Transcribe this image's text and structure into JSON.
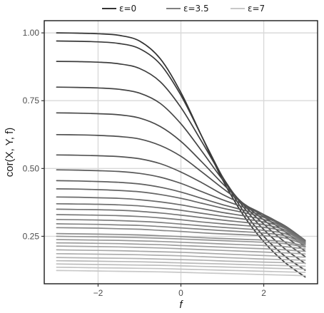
{
  "chart_data": {
    "type": "line",
    "xlabel": "f",
    "ylabel": "cor(X, Y, f)",
    "xlim": [
      -3.3,
      3.3
    ],
    "ylim": [
      0.075,
      1.045
    ],
    "x_ticks": [
      -2,
      0,
      2
    ],
    "x_tick_labels": [
      "−2",
      "0",
      "2"
    ],
    "y_ticks": [
      0.25,
      0.5,
      0.75,
      1.0
    ],
    "y_tick_labels": [
      "0.25",
      "0.50",
      "0.75",
      "1.00"
    ],
    "grid": true,
    "legend_position": "top",
    "legend": [
      {
        "label": "ε=0",
        "color": "#333333"
      },
      {
        "label": "ε=3.5",
        "color": "#808080"
      },
      {
        "label": "ε=7",
        "color": "#c8c8c8"
      }
    ],
    "x": [
      -3.0,
      -2.5,
      -2.0,
      -1.5,
      -1.0,
      -0.5,
      0.0,
      0.5,
      1.0,
      1.5,
      2.0,
      2.5,
      3.0
    ],
    "series": [
      {
        "values": [
          1.0,
          0.999,
          0.997,
          0.991,
          0.97,
          0.905,
          0.78,
          0.62,
          0.46,
          0.33,
          0.23,
          0.155,
          0.1
        ]
      },
      {
        "values": [
          0.97,
          0.969,
          0.967,
          0.961,
          0.942,
          0.885,
          0.77,
          0.62,
          0.47,
          0.345,
          0.25,
          0.178,
          0.125
        ]
      },
      {
        "values": [
          0.895,
          0.894,
          0.892,
          0.886,
          0.869,
          0.82,
          0.725,
          0.6,
          0.47,
          0.36,
          0.275,
          0.205,
          0.15
        ]
      },
      {
        "values": [
          0.8,
          0.799,
          0.797,
          0.792,
          0.778,
          0.74,
          0.665,
          0.565,
          0.46,
          0.368,
          0.295,
          0.23,
          0.175
        ]
      },
      {
        "values": [
          0.705,
          0.704,
          0.702,
          0.698,
          0.686,
          0.655,
          0.6,
          0.525,
          0.445,
          0.372,
          0.31,
          0.252,
          0.195
        ]
      },
      {
        "values": [
          0.625,
          0.624,
          0.622,
          0.618,
          0.609,
          0.585,
          0.545,
          0.488,
          0.428,
          0.372,
          0.322,
          0.268,
          0.212
        ]
      },
      {
        "values": [
          0.55,
          0.549,
          0.547,
          0.544,
          0.536,
          0.518,
          0.487,
          0.448,
          0.405,
          0.368,
          0.33,
          0.282,
          0.225
        ]
      },
      {
        "values": [
          0.495,
          0.494,
          0.492,
          0.489,
          0.482,
          0.468,
          0.445,
          0.415,
          0.385,
          0.358,
          0.33,
          0.288,
          0.232
        ]
      },
      {
        "values": [
          0.455,
          0.454,
          0.452,
          0.449,
          0.443,
          0.431,
          0.413,
          0.39,
          0.367,
          0.347,
          0.325,
          0.29,
          0.235
        ]
      },
      {
        "values": [
          0.425,
          0.424,
          0.422,
          0.419,
          0.414,
          0.404,
          0.39,
          0.372,
          0.354,
          0.338,
          0.32,
          0.288,
          0.235
        ]
      },
      {
        "values": [
          0.395,
          0.394,
          0.392,
          0.39,
          0.385,
          0.377,
          0.366,
          0.352,
          0.338,
          0.326,
          0.312,
          0.284,
          0.234
        ]
      },
      {
        "values": [
          0.37,
          0.369,
          0.368,
          0.366,
          0.362,
          0.355,
          0.346,
          0.335,
          0.324,
          0.314,
          0.303,
          0.28,
          0.232
        ]
      },
      {
        "values": [
          0.35,
          0.349,
          0.348,
          0.346,
          0.342,
          0.336,
          0.328,
          0.319,
          0.31,
          0.302,
          0.293,
          0.274,
          0.23
        ]
      },
      {
        "values": [
          0.33,
          0.329,
          0.328,
          0.326,
          0.323,
          0.318,
          0.311,
          0.303,
          0.296,
          0.29,
          0.283,
          0.268,
          0.228
        ]
      },
      {
        "values": [
          0.312,
          0.311,
          0.31,
          0.308,
          0.305,
          0.301,
          0.295,
          0.289,
          0.283,
          0.278,
          0.272,
          0.26,
          0.225
        ]
      },
      {
        "values": [
          0.296,
          0.295,
          0.294,
          0.292,
          0.29,
          0.286,
          0.281,
          0.276,
          0.271,
          0.267,
          0.262,
          0.252,
          0.222
        ]
      },
      {
        "values": [
          0.282,
          0.281,
          0.28,
          0.278,
          0.276,
          0.272,
          0.268,
          0.263,
          0.259,
          0.256,
          0.252,
          0.244,
          0.219
        ]
      },
      {
        "values": [
          0.26,
          0.259,
          0.258,
          0.257,
          0.255,
          0.252,
          0.249,
          0.245,
          0.242,
          0.239,
          0.236,
          0.23,
          0.214
        ]
      },
      {
        "values": [
          0.25,
          0.249,
          0.248,
          0.247,
          0.245,
          0.243,
          0.24,
          0.237,
          0.234,
          0.231,
          0.228,
          0.223,
          0.21
        ]
      },
      {
        "values": [
          0.238,
          0.237,
          0.236,
          0.235,
          0.233,
          0.231,
          0.228,
          0.225,
          0.222,
          0.219,
          0.216,
          0.212,
          0.203
        ]
      },
      {
        "values": [
          0.226,
          0.225,
          0.224,
          0.223,
          0.221,
          0.219,
          0.216,
          0.213,
          0.21,
          0.207,
          0.204,
          0.2,
          0.194
        ]
      },
      {
        "values": [
          0.214,
          0.213,
          0.212,
          0.211,
          0.209,
          0.207,
          0.204,
          0.201,
          0.198,
          0.195,
          0.192,
          0.189,
          0.185
        ]
      },
      {
        "values": [
          0.2,
          0.199,
          0.198,
          0.197,
          0.195,
          0.193,
          0.191,
          0.188,
          0.185,
          0.182,
          0.179,
          0.176,
          0.173
        ]
      },
      {
        "values": [
          0.186,
          0.185,
          0.184,
          0.183,
          0.182,
          0.18,
          0.178,
          0.175,
          0.172,
          0.169,
          0.166,
          0.164,
          0.162
        ]
      },
      {
        "values": [
          0.172,
          0.171,
          0.17,
          0.169,
          0.168,
          0.166,
          0.164,
          0.162,
          0.159,
          0.157,
          0.155,
          0.153,
          0.151
        ]
      },
      {
        "values": [
          0.16,
          0.159,
          0.158,
          0.157,
          0.156,
          0.154,
          0.152,
          0.15,
          0.148,
          0.146,
          0.144,
          0.142,
          0.14
        ]
      },
      {
        "values": [
          0.148,
          0.147,
          0.146,
          0.145,
          0.144,
          0.143,
          0.141,
          0.139,
          0.137,
          0.135,
          0.133,
          0.131,
          0.129
        ]
      },
      {
        "values": [
          0.136,
          0.135,
          0.134,
          0.133,
          0.132,
          0.131,
          0.129,
          0.127,
          0.125,
          0.123,
          0.121,
          0.119,
          0.117
        ]
      },
      {
        "values": [
          0.124,
          0.123,
          0.122,
          0.121,
          0.12,
          0.119,
          0.117,
          0.115,
          0.113,
          0.111,
          0.109,
          0.107,
          0.105
        ]
      }
    ],
    "series_color_start": "#333333",
    "series_color_mid": "#808080",
    "series_color_end": "#c8c8c8",
    "grid_color": "#d9d9d9",
    "panel_border_color": "#1a1a1a"
  }
}
